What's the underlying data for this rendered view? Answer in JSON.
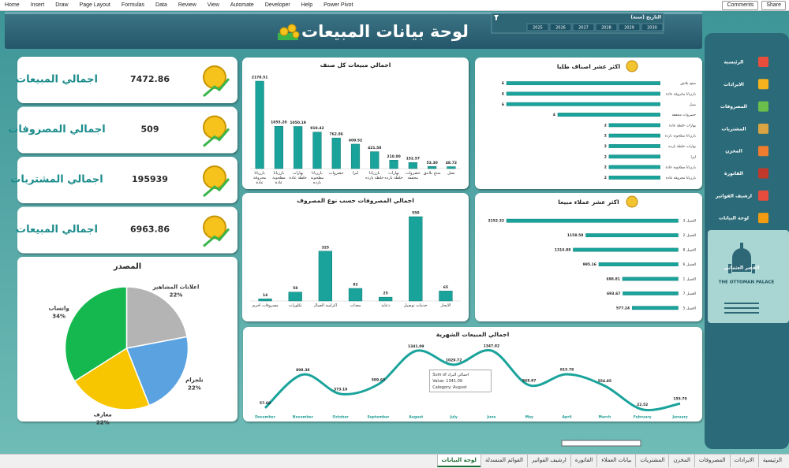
{
  "ribbon": {
    "tabs": [
      "Home",
      "Insert",
      "Draw",
      "Page Layout",
      "Formulas",
      "Data",
      "Review",
      "View",
      "Automate",
      "Developer",
      "Help",
      "Power Pivot"
    ],
    "buttons": [
      "Comments",
      "Share"
    ]
  },
  "header": {
    "title": "لوحة بيانات المبيعات",
    "slicer_title": "التاريخ (سنة)",
    "years": [
      2030,
      2029,
      2028,
      2027,
      2026,
      2025
    ]
  },
  "sidebar": {
    "items": [
      "الرئيسية",
      "الايرادات",
      "المصروفات",
      "المشتريات",
      "المخزن",
      "الفاتورة",
      "ارشيف الفواتير",
      "لوحة البيانات"
    ],
    "logo": {
      "arabic": "القصر العثماني",
      "english": "THE OTTOMAN PALACE"
    }
  },
  "kpis": [
    {
      "label": "اجمالي المبيعات",
      "value": 7472.86
    },
    {
      "label": "اجمالي المصروفات",
      "value": 509
    },
    {
      "label": "اجمالي المشتريات",
      "value": 195939
    },
    {
      "label": "اجمالي المبيعات",
      "value": 6963.86
    }
  ],
  "chart_data": [
    {
      "type": "bar",
      "title": "اجمالي مبيعات كل صنف",
      "categories": [
        "بارزيانا محروقة عادة",
        "بارزيانا مطحونة عادة",
        "بهارات خلطة عادة",
        "بارزيانا مطحونة بارده",
        "خضروات",
        "ليزا",
        "بارزيانا خلطة بارده",
        "بهارات خلطة بارده",
        "خضروات مجففة",
        "منتج بلاتنق",
        "بصل"
      ],
      "values": [
        2178.51,
        1055.2,
        1050.19,
        910.42,
        762.86,
        609.52,
        421.58,
        210,
        152.57,
        53.3,
        48.72
      ],
      "value_labels": [
        "2178.51",
        "1055.20",
        "1050.19",
        "910.42",
        "762.86",
        "609.52",
        "421.58",
        "210.00",
        "152.57",
        "53.30",
        "48.72"
      ],
      "color": "#1aa39b"
    },
    {
      "type": "bar",
      "orientation": "horizontal",
      "title": "اكثر عشر اصناف طلبا",
      "categories": [
        "منتج بلاتنق",
        "بارزيانا محروقة عادة",
        "بصل",
        "خضروات مجففة",
        "بهارات خلطة عادة",
        "بارزيانا مطحونة بارده",
        "بهارات خلطة بارده",
        "ليزا",
        "بارزيانا مطحونة عادة",
        "بارزيانا محروقة عادة"
      ],
      "values": [
        6,
        6,
        6,
        4,
        2,
        2,
        2,
        2,
        2,
        2
      ],
      "color": "#1aa39b"
    },
    {
      "type": "bar",
      "title": "اجمالي المصروفات حسب نوع المصروف",
      "categories": [
        "مصروفات اخرى",
        "تكلورات",
        "اكرامية العمال",
        "معدات",
        "دعاية",
        "خدمات توصيل",
        "الايجار"
      ],
      "values": [
        14,
        58,
        325,
        82,
        25,
        550,
        65
      ],
      "color": "#1aa39b"
    },
    {
      "type": "bar",
      "orientation": "horizontal",
      "title": "اكثر عشر عملاء مبيعا",
      "categories": [
        "العميل 3",
        "العميل 2",
        "العميل 8",
        "العميل 6",
        "العميل 1",
        "العميل 7",
        "العميل 5"
      ],
      "values": [
        2152.32,
        1158.58,
        1316.88,
        995.16,
        698.81,
        693.67,
        577.24
      ],
      "color": "#1aa39b"
    },
    {
      "type": "line",
      "title": "اجمالي المبيعات الشهرية",
      "categories": [
        "December",
        "November",
        "October",
        "September",
        "August",
        "July",
        "June",
        "May",
        "April",
        "March",
        "February",
        "January"
      ],
      "values": [
        57.68,
        808.38,
        373.19,
        589.63,
        1341.09,
        1029.72,
        1347.82,
        568.87,
        815.78,
        554.85,
        22.52,
        155.7
      ],
      "value_labels": [
        "57.68",
        "808.38",
        "373.19",
        "589.63",
        "1341.09",
        "1029.72",
        "1347.82",
        "568.87",
        "815.78",
        "554.85",
        "22.52",
        "155.70"
      ],
      "color": "#1aa39b",
      "tooltip": {
        "lines": [
          "Sum of اجمالي البراد",
          "Value: 1341.09",
          "Category: August"
        ]
      }
    },
    {
      "type": "pie",
      "title": "المصدر",
      "categories": [
        "اعلانات المشاهير",
        "تلجرام",
        "معارف",
        "واتساب"
      ],
      "values": [
        22,
        22,
        22,
        34
      ],
      "value_labels": [
        "22%",
        "22%",
        "22%",
        "34%"
      ],
      "colors": [
        "#b4b4b4",
        "#5ba3e0",
        "#f7c600",
        "#15b84f"
      ]
    }
  ],
  "sheet_tabs": [
    "الرئيسية",
    "الايرادات",
    "المصروفات",
    "المخزن",
    "المشتريات",
    "بيانات العملاء",
    "الفاتورة",
    "ارشيف الفواتير",
    "القوائم المنسدلة",
    "لوحة البيانات"
  ],
  "active_tab": 9
}
